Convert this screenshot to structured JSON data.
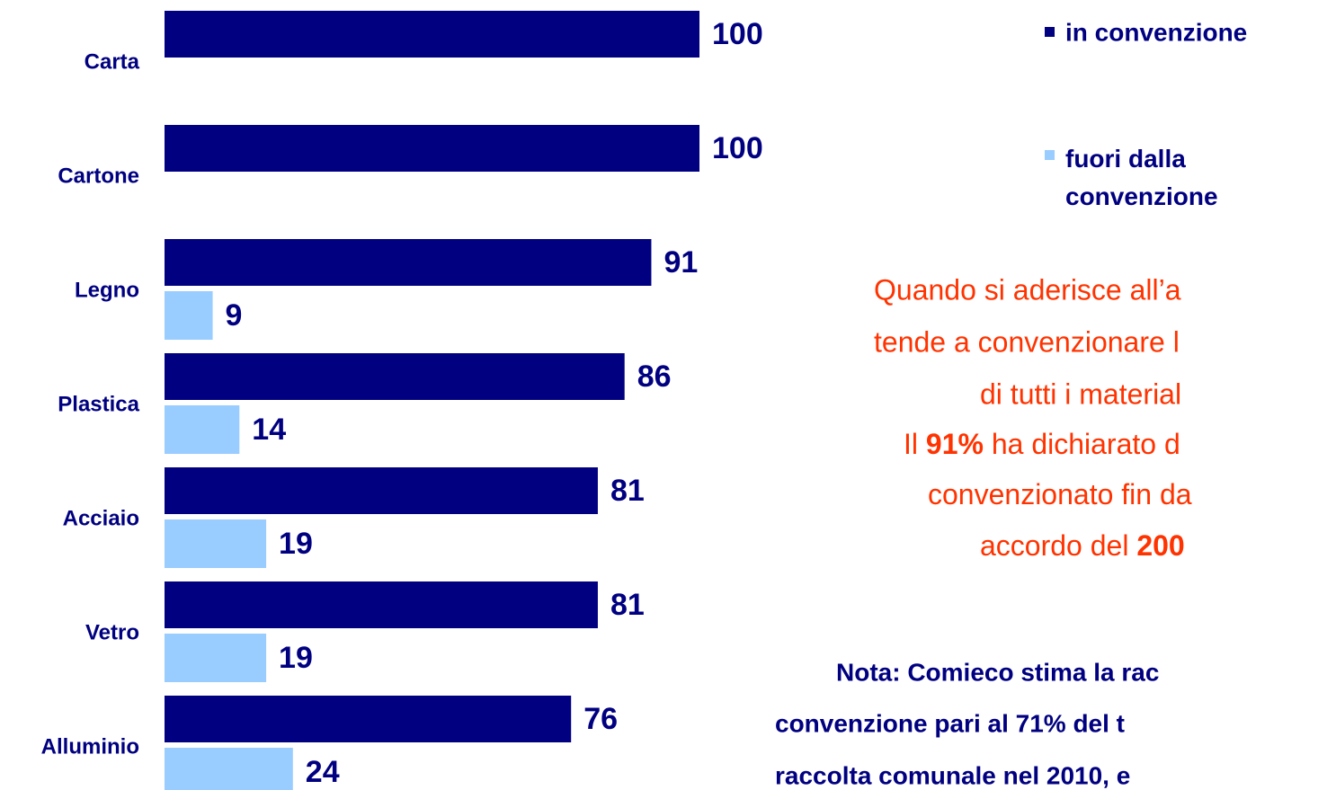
{
  "chart_data": {
    "type": "bar",
    "orientation": "horizontal",
    "categories": [
      "Carta",
      "Cartone",
      "Legno",
      "Plastica",
      "Acciaio",
      "Vetro",
      "Alluminio"
    ],
    "series": [
      {
        "name": "in convenzione",
        "color": "#000080",
        "values": [
          100,
          100,
          91,
          86,
          81,
          81,
          76
        ]
      },
      {
        "name": "fuori dalla convenzione",
        "color": "#99ccff",
        "values": [
          null,
          null,
          9,
          14,
          19,
          19,
          24
        ]
      }
    ],
    "xlim": [
      0,
      100
    ],
    "annotations": {
      "remark": [
        "Quando si aderisce all’a",
        "tende a convenzionare l",
        "di tutti i material"
      ],
      "detail": [
        [
          "Il ",
          "91%",
          " ha dichiarato d"
        ],
        [
          "convenzionato fin da"
        ],
        [
          "accordo del ",
          "200"
        ]
      ],
      "note": [
        "Nota:  Comieco stima la rac",
        "convenzione pari al 71% del t",
        "raccolta comunale nel 2010, e"
      ]
    }
  }
}
